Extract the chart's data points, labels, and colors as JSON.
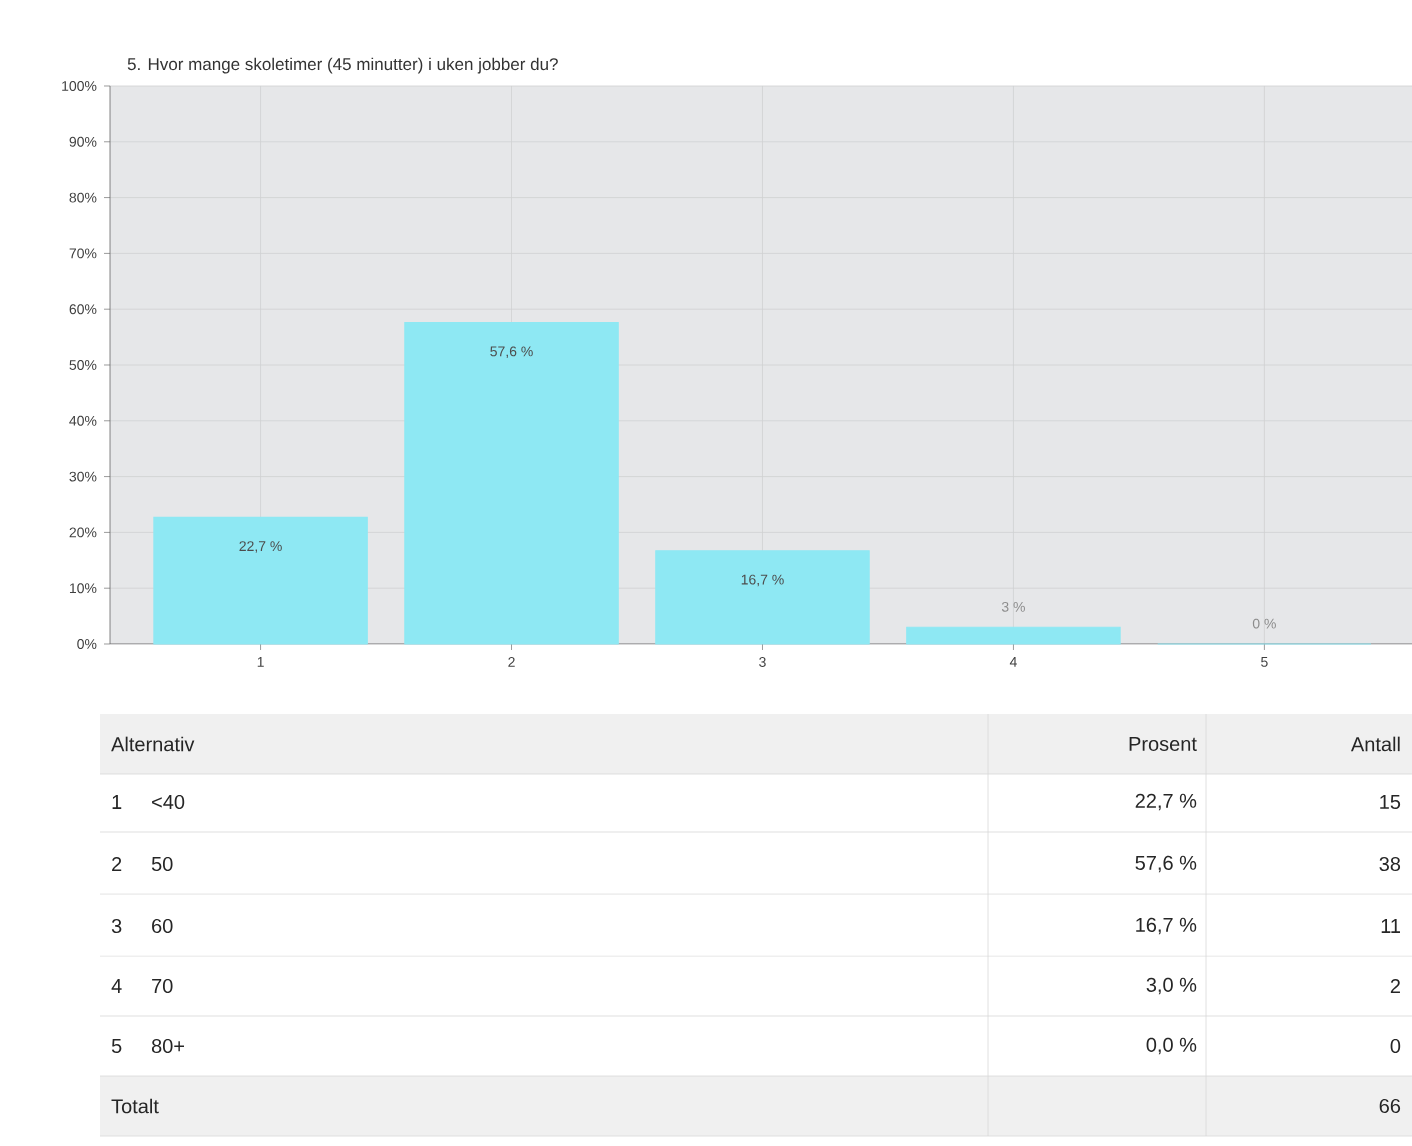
{
  "chart_data": {
    "type": "bar",
    "title": "5. Hvor mange skoletimer (45 minutter) i uken jobber du?",
    "categories": [
      "1",
      "2",
      "3",
      "4",
      "5"
    ],
    "values": [
      22.7,
      57.6,
      16.7,
      3,
      0
    ],
    "value_labels": [
      "22,7 %",
      "57,6 %",
      "16,7 %",
      "3 %",
      "0 %"
    ],
    "color": "#8ee8f3",
    "ylim": [
      0,
      100
    ],
    "yticks": [
      {
        "value": 0,
        "label": "0%"
      },
      {
        "value": 10,
        "label": "10%"
      },
      {
        "value": 20,
        "label": "20%"
      },
      {
        "value": 30,
        "label": "30%"
      },
      {
        "value": 40,
        "label": "40%"
      },
      {
        "value": 50,
        "label": "50%"
      },
      {
        "value": 60,
        "label": "60%"
      },
      {
        "value": 70,
        "label": "70%"
      },
      {
        "value": 80,
        "label": "80%"
      },
      {
        "value": 90,
        "label": "90%"
      },
      {
        "value": 100,
        "label": "100%"
      }
    ],
    "grid": true,
    "annotations": [
      "Alternativ",
      "Prosent",
      "Antall",
      "1",
      "<40",
      "22,7 %",
      "15",
      "2",
      "50",
      "57,6 %",
      "38",
      "3",
      "60",
      "16,7 %",
      "11",
      "4",
      "70",
      "3,0 %",
      "2",
      "5",
      "80+",
      "0,0 %",
      "0",
      "Totalt",
      "66"
    ]
  }
}
